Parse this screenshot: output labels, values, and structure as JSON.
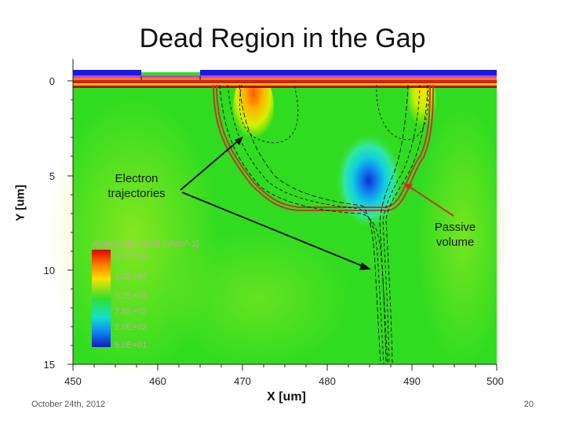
{
  "title": "Dead Region in the Gap",
  "axes": {
    "xlabel": "X [um]",
    "ylabel": "Y [um]",
    "x_ticks": [
      "450",
      "460",
      "470",
      "480",
      "490",
      "500"
    ],
    "y_ticks": [
      "0",
      "5",
      "10",
      "15"
    ]
  },
  "annotations": {
    "electron": "Electron trajectories",
    "passive": "Passive volume"
  },
  "legend": {
    "title": "Abs(ElectricField) [V/cm^-1]",
    "entries": [
      "5.0E+04",
      "1.2E+04",
      "3.2E+03",
      "7.8E+02",
      "2.0E+02",
      "5.0E+01"
    ]
  },
  "footer": {
    "date": "October 24th, 2012",
    "page": "20"
  },
  "colors": {
    "field_background": "#33dd22",
    "hot_spot": "#ff6a00",
    "low_field": "#1040d0",
    "electrode": "#1a1ae0",
    "trajectory": "#111111",
    "passive_boundary": "#c0392b",
    "arrow_passive": "#c0392b"
  }
}
